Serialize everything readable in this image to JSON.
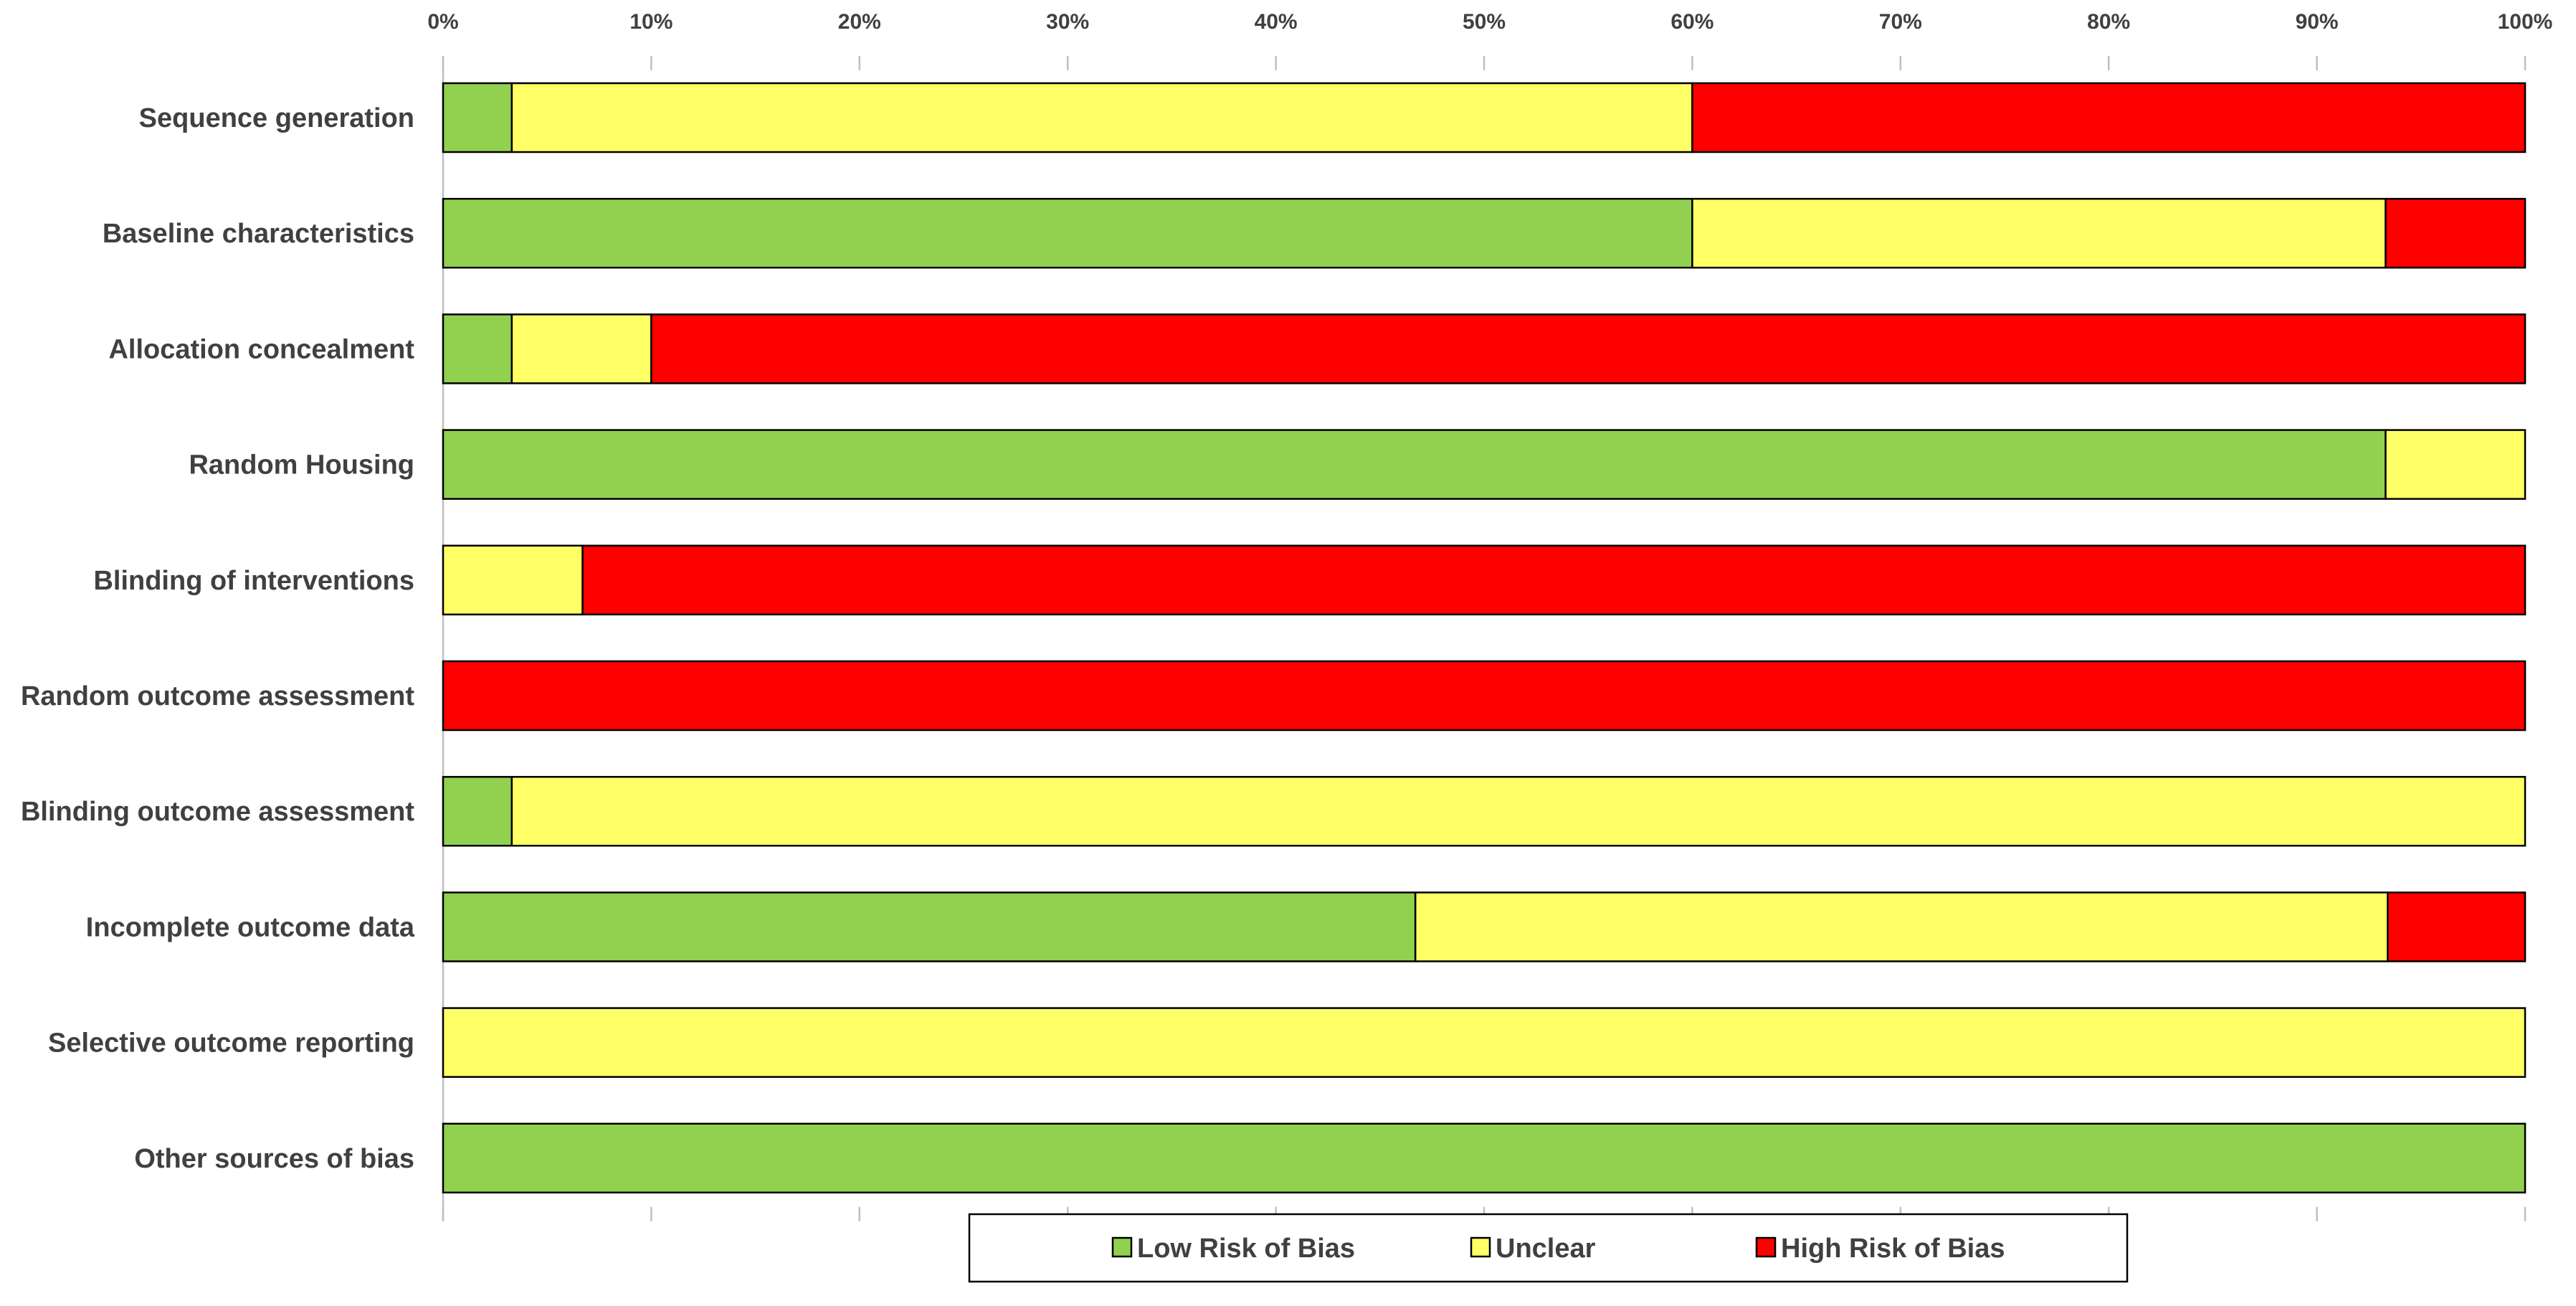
{
  "chart_data": {
    "type": "bar",
    "orientation": "horizontal",
    "stacked": "percent",
    "xlim": [
      0,
      100
    ],
    "x_ticks": [
      "0%",
      "10%",
      "20%",
      "30%",
      "40%",
      "50%",
      "60%",
      "70%",
      "80%",
      "90%",
      "100%"
    ],
    "x_axis_position": "top",
    "grid": false,
    "legend_position": "bottom",
    "categories": [
      "Sequence generation",
      "Baseline characteristics",
      "Allocation concealment",
      "Random Housing",
      "Blinding of interventions",
      "Random outcome assessment",
      "Blinding outcome assessment",
      "Incomplete outcome data",
      "Selective outcome reporting",
      "Other sources of bias"
    ],
    "series": [
      {
        "name": "Low Risk of Bias",
        "color": "#92D050",
        "values": [
          3.3,
          60,
          3.3,
          93.3,
          0,
          0,
          3.3,
          46.7,
          0,
          100
        ]
      },
      {
        "name": "Unclear",
        "color": "#FFFF66",
        "values": [
          56.7,
          33.3,
          6.7,
          6.7,
          6.7,
          0,
          96.7,
          46.7,
          100,
          0
        ]
      },
      {
        "name": "High Risk of Bias",
        "color": "#FF0000",
        "values": [
          40,
          6.7,
          90,
          0,
          93.3,
          100,
          0,
          6.6,
          0,
          0
        ]
      }
    ]
  }
}
